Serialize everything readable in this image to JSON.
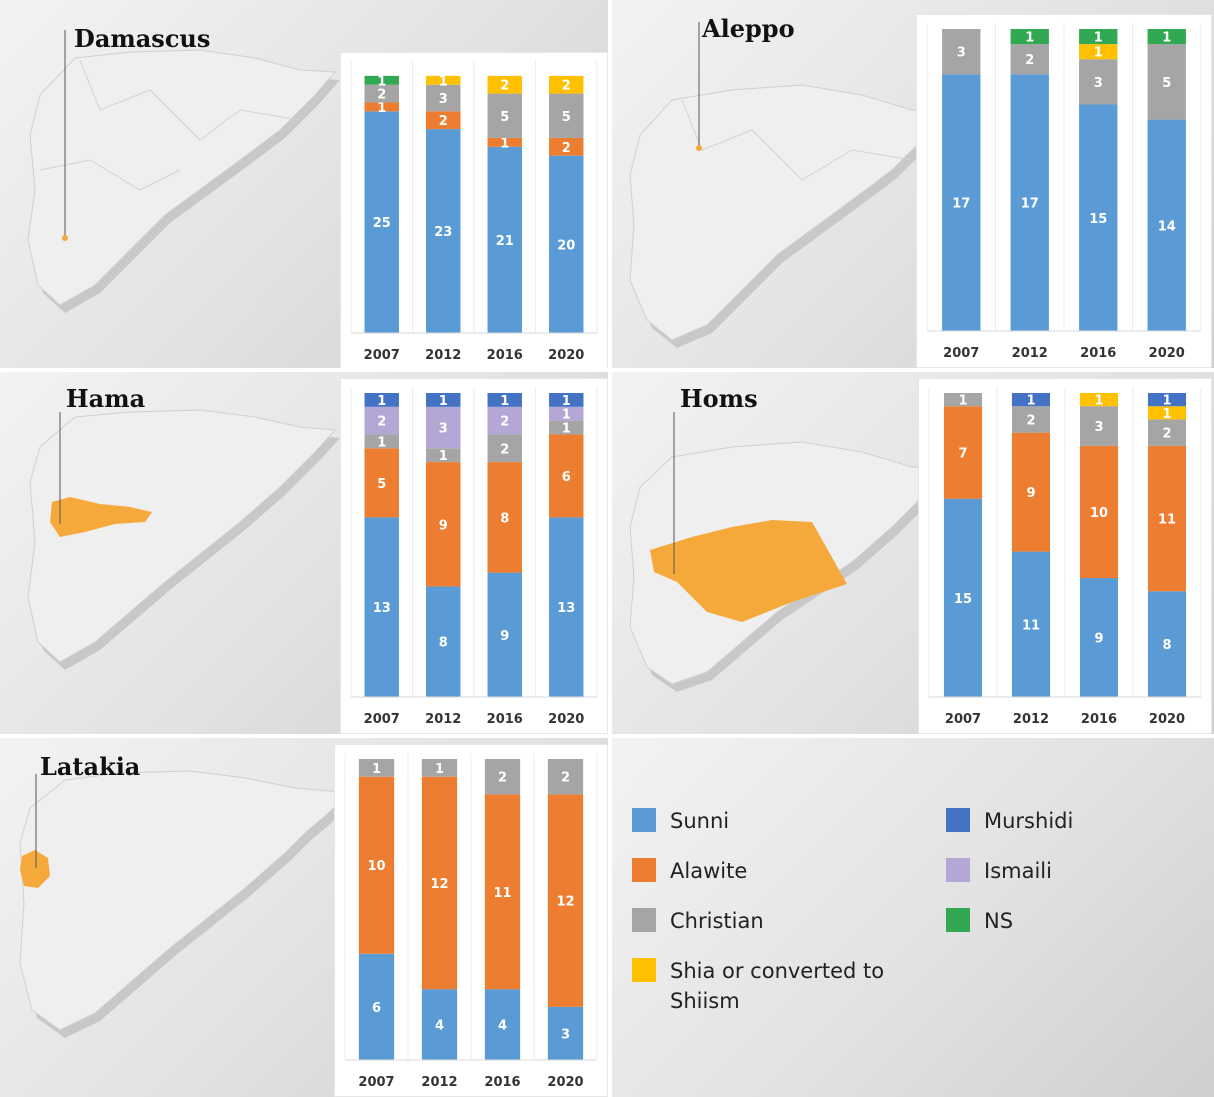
{
  "colors": {
    "Sunni": "#5b9bd5",
    "Alawite": "#ed7d31",
    "Christian": "#a5a5a5",
    "Shia": "#ffc000",
    "Murshidi": "#4472c4",
    "Ismaili": "#b4a7d6",
    "NS": "#33a852",
    "highlight": "#f6a93b"
  },
  "legend": [
    {
      "key": "Sunni",
      "label": "Sunni"
    },
    {
      "key": "Alawite",
      "label": "Alawite"
    },
    {
      "key": "Christian",
      "label": "Christian"
    },
    {
      "key": "Shia",
      "label": "Shia or converted to Shiism"
    },
    {
      "key": "Murshidi",
      "label": "Murshidi"
    },
    {
      "key": "Ismaili",
      "label": "Ismaili"
    },
    {
      "key": "NS",
      "label": "NS"
    }
  ],
  "chart_data": [
    {
      "type": "bar",
      "stacked": true,
      "title": "Damascus",
      "categories": [
        "2007",
        "2012",
        "2016",
        "2020"
      ],
      "ylim": [
        0,
        30
      ],
      "series": [
        {
          "name": "Sunni",
          "values": [
            25,
            23,
            21,
            20
          ]
        },
        {
          "name": "Alawite",
          "values": [
            1,
            2,
            1,
            2
          ]
        },
        {
          "name": "Christian",
          "values": [
            2,
            3,
            5,
            5
          ]
        },
        {
          "name": "Shia",
          "values": [
            0,
            1,
            2,
            2
          ]
        },
        {
          "name": "NS",
          "values": [
            1,
            0,
            0,
            0
          ]
        }
      ]
    },
    {
      "type": "bar",
      "stacked": true,
      "title": "Aleppo",
      "categories": [
        "2007",
        "2012",
        "2016",
        "2020"
      ],
      "ylim": [
        0,
        20
      ],
      "series": [
        {
          "name": "Sunni",
          "values": [
            17,
            17,
            15,
            14
          ]
        },
        {
          "name": "Christian",
          "values": [
            3,
            2,
            3,
            5
          ]
        },
        {
          "name": "Shia",
          "values": [
            0,
            0,
            1,
            0
          ]
        },
        {
          "name": "NS",
          "values": [
            0,
            1,
            1,
            1
          ]
        }
      ]
    },
    {
      "type": "bar",
      "stacked": true,
      "title": "Hama",
      "categories": [
        "2007",
        "2012",
        "2016",
        "2020"
      ],
      "ylim": [
        0,
        22
      ],
      "series": [
        {
          "name": "Sunni",
          "values": [
            13,
            8,
            9,
            13
          ]
        },
        {
          "name": "Alawite",
          "values": [
            5,
            9,
            8,
            6
          ]
        },
        {
          "name": "Christian",
          "values": [
            1,
            1,
            2,
            1
          ]
        },
        {
          "name": "Ismaili",
          "values": [
            2,
            3,
            2,
            1
          ]
        },
        {
          "name": "Murshidi",
          "values": [
            1,
            1,
            1,
            1
          ]
        }
      ]
    },
    {
      "type": "bar",
      "stacked": true,
      "title": "Homs",
      "categories": [
        "2007",
        "2012",
        "2016",
        "2020"
      ],
      "ylim": [
        0,
        23
      ],
      "series": [
        {
          "name": "Sunni",
          "values": [
            15,
            11,
            9,
            8
          ]
        },
        {
          "name": "Alawite",
          "values": [
            7,
            9,
            10,
            11
          ]
        },
        {
          "name": "Christian",
          "values": [
            1,
            2,
            3,
            2
          ]
        },
        {
          "name": "Shia",
          "values": [
            0,
            0,
            1,
            1
          ]
        },
        {
          "name": "Murshidi",
          "values": [
            0,
            1,
            0,
            1
          ]
        }
      ]
    },
    {
      "type": "bar",
      "stacked": true,
      "title": "Latakia",
      "categories": [
        "2007",
        "2012",
        "2016",
        "2020"
      ],
      "ylim": [
        0,
        17
      ],
      "series": [
        {
          "name": "Sunni",
          "values": [
            6,
            4,
            4,
            3
          ]
        },
        {
          "name": "Alawite",
          "values": [
            10,
            12,
            11,
            12
          ]
        },
        {
          "name": "Christian",
          "values": [
            1,
            1,
            2,
            2
          ]
        }
      ]
    }
  ]
}
